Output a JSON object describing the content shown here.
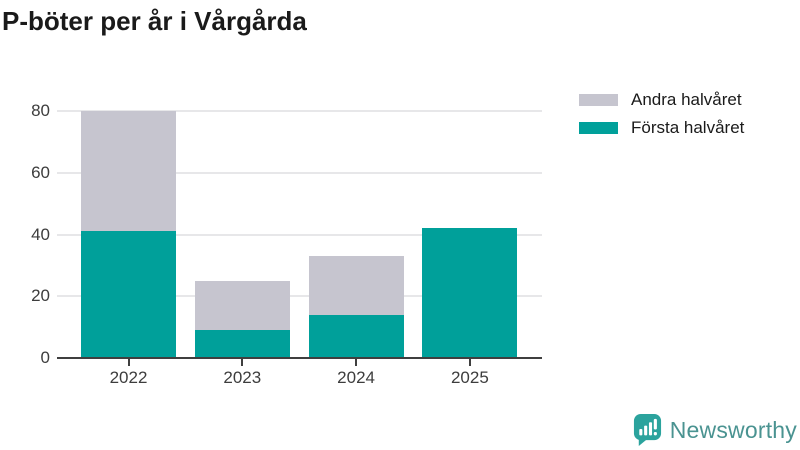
{
  "title": "P-böter per år i Vårgårda",
  "colors": {
    "teal": "#00a09a",
    "gray": "#c6c5cf",
    "grid": "#e7e7e9",
    "axis_line": "#3f3f3f",
    "tick_text": "#3d3d3d",
    "title_text": "#1a1a1a",
    "logo_icon": "#2ba39d",
    "logo_text": "#4a9391"
  },
  "legend": {
    "items": [
      {
        "label": "Andra halvåret",
        "color": "#c6c5cf"
      },
      {
        "label": "Första halvåret",
        "color": "#00a09a"
      }
    ]
  },
  "chart_data": {
    "type": "bar",
    "stacked": true,
    "title": "P-böter per år i Vårgårda",
    "categories": [
      "2022",
      "2023",
      "2024",
      "2025"
    ],
    "series": [
      {
        "name": "Första halvåret",
        "color": "#00a09a",
        "values": [
          41,
          9,
          14,
          42
        ]
      },
      {
        "name": "Andra halvåret",
        "color": "#c6c5cf",
        "values": [
          39,
          16,
          19,
          0
        ]
      }
    ],
    "totals": [
      80,
      25,
      33,
      42
    ],
    "xlabel": "",
    "ylabel": "",
    "ylim": [
      0,
      80
    ],
    "yticks": [
      0,
      20,
      40,
      60,
      80
    ],
    "grid": true,
    "legend_position": "top-right"
  },
  "branding": {
    "logo_text": "Newsworthy",
    "logo_icon": "bar-chart-speech-bubble-icon"
  }
}
